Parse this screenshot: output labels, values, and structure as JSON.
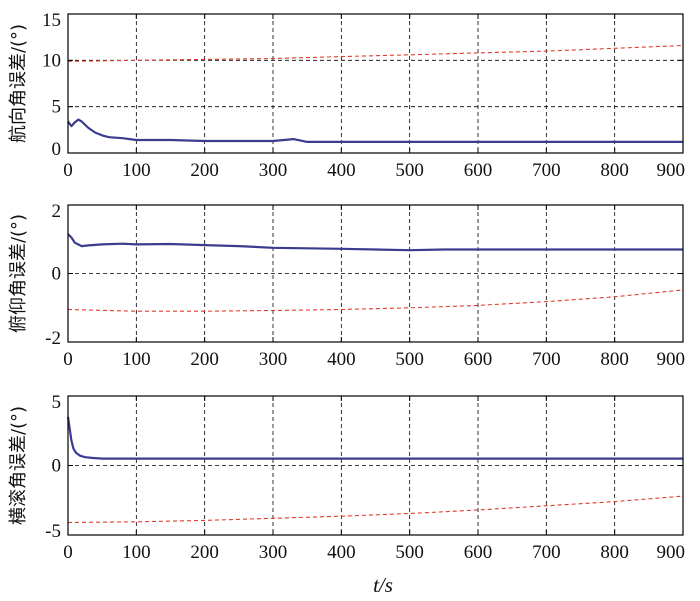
{
  "chart_data": [
    {
      "type": "line",
      "ylabel": "航向角误差/(°)",
      "xlim": [
        0,
        900
      ],
      "ylim": [
        0,
        15
      ],
      "xticks": [
        0,
        100,
        200,
        300,
        400,
        500,
        600,
        700,
        800,
        900
      ],
      "yticks": [
        0,
        5,
        10,
        15
      ],
      "grid": true,
      "series": [
        {
          "color": "#3b3b8f",
          "style": "solid",
          "x": [
            0,
            5,
            10,
            15,
            20,
            30,
            40,
            50,
            60,
            80,
            100,
            150,
            200,
            250,
            300,
            330,
            350,
            400,
            500,
            600,
            700,
            800,
            900
          ],
          "y": [
            3.4,
            2.9,
            3.3,
            3.6,
            3.4,
            2.7,
            2.2,
            1.9,
            1.7,
            1.6,
            1.4,
            1.4,
            1.3,
            1.3,
            1.3,
            1.5,
            1.2,
            1.2,
            1.2,
            1.2,
            1.2,
            1.2,
            1.2
          ]
        },
        {
          "color": "#e03c2c",
          "style": "dashed",
          "x": [
            0,
            100,
            200,
            300,
            400,
            500,
            600,
            700,
            800,
            900
          ],
          "y": [
            9.9,
            10.0,
            10.1,
            10.2,
            10.4,
            10.6,
            10.8,
            11.0,
            11.3,
            11.6
          ]
        }
      ]
    },
    {
      "type": "line",
      "ylabel": "俯仰角误差/(°)",
      "xlim": [
        0,
        900
      ],
      "ylim": [
        -2,
        2
      ],
      "xticks": [
        0,
        100,
        200,
        300,
        400,
        500,
        600,
        700,
        800,
        900
      ],
      "yticks": [
        -2,
        0,
        2
      ],
      "grid": true,
      "series": [
        {
          "color": "#3b3b8f",
          "style": "solid",
          "x": [
            0,
            5,
            10,
            20,
            30,
            50,
            80,
            100,
            150,
            200,
            250,
            300,
            400,
            450,
            500,
            550,
            600,
            700,
            800,
            900
          ],
          "y": [
            1.15,
            1.05,
            0.9,
            0.8,
            0.82,
            0.85,
            0.87,
            0.85,
            0.86,
            0.83,
            0.8,
            0.75,
            0.72,
            0.7,
            0.68,
            0.7,
            0.7,
            0.7,
            0.7,
            0.7
          ]
        },
        {
          "color": "#e03c2c",
          "style": "dashed",
          "x": [
            0,
            100,
            200,
            300,
            400,
            500,
            600,
            700,
            800,
            900
          ],
          "y": [
            -1.05,
            -1.1,
            -1.1,
            -1.08,
            -1.05,
            -1.0,
            -0.93,
            -0.82,
            -0.68,
            -0.48
          ]
        }
      ]
    },
    {
      "type": "line",
      "ylabel": "横滚角误差/(°)",
      "xlabel": "t/s",
      "xlim": [
        0,
        900
      ],
      "ylim": [
        -5,
        5
      ],
      "xticks": [
        0,
        100,
        200,
        300,
        400,
        500,
        600,
        700,
        800,
        900
      ],
      "yticks": [
        -5,
        0,
        5
      ],
      "grid": true,
      "series": [
        {
          "color": "#3b3b8f",
          "style": "solid",
          "x": [
            0,
            2,
            5,
            8,
            12,
            18,
            25,
            35,
            50,
            100,
            200,
            300,
            400,
            500,
            600,
            700,
            800,
            900
          ],
          "y": [
            3.5,
            2.8,
            1.8,
            1.2,
            0.9,
            0.7,
            0.6,
            0.55,
            0.5,
            0.5,
            0.5,
            0.5,
            0.5,
            0.5,
            0.5,
            0.5,
            0.5,
            0.5
          ]
        },
        {
          "color": "#e03c2c",
          "style": "dashed",
          "x": [
            0,
            100,
            200,
            300,
            400,
            500,
            600,
            700,
            800,
            900
          ],
          "y": [
            -4.1,
            -4.05,
            -3.95,
            -3.8,
            -3.65,
            -3.45,
            -3.2,
            -2.9,
            -2.6,
            -2.2
          ]
        }
      ]
    }
  ]
}
